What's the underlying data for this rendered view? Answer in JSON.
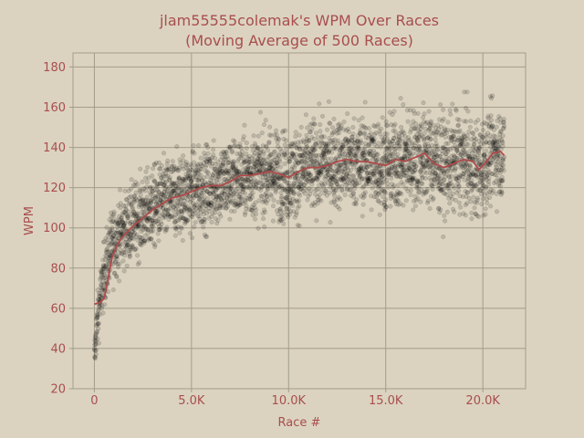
{
  "chart_data": {
    "type": "scatter",
    "title": "jlam55555colemak's WPM Over Races",
    "subtitle": "(Moving Average of 500 Races)",
    "xlabel": "Race #",
    "ylabel": "WPM",
    "xlim": [
      -1100,
      22200
    ],
    "ylim": [
      20,
      187
    ],
    "x_ticks": [
      0,
      5000,
      10000,
      15000,
      20000
    ],
    "x_tick_labels": [
      "0",
      "5.0K",
      "10.0K",
      "15.0K",
      "20.0K"
    ],
    "y_ticks": [
      20,
      40,
      60,
      80,
      100,
      120,
      140,
      160,
      180
    ],
    "y_tick_labels": [
      "20",
      "40",
      "60",
      "80",
      "100",
      "120",
      "140",
      "160",
      "180"
    ],
    "grid": true,
    "colors": {
      "background": "#dbd3c0",
      "text": "#a94e4e",
      "grid": "#a39c8a",
      "points": "#000000",
      "moving_average": "#b04a4a"
    },
    "series": [
      {
        "type": "scatter",
        "total_races": 21100,
        "band": [
          {
            "x": 0,
            "mean": 35,
            "spread": 5
          },
          {
            "x": 100,
            "mean": 48,
            "spread": 6
          },
          {
            "x": 250,
            "mean": 62,
            "spread": 7
          },
          {
            "x": 500,
            "mean": 77,
            "spread": 8
          },
          {
            "x": 800,
            "mean": 88,
            "spread": 9
          },
          {
            "x": 1200,
            "mean": 96,
            "spread": 9
          },
          {
            "x": 2000,
            "mean": 103,
            "spread": 9
          },
          {
            "x": 3000,
            "mean": 110,
            "spread": 10
          },
          {
            "x": 4000,
            "mean": 115,
            "spread": 10
          },
          {
            "x": 5000,
            "mean": 118,
            "spread": 10
          },
          {
            "x": 6000,
            "mean": 121,
            "spread": 10
          },
          {
            "x": 7000,
            "mean": 124,
            "spread": 10
          },
          {
            "x": 8000,
            "mean": 126,
            "spread": 10
          },
          {
            "x": 9000,
            "mean": 128,
            "spread": 11
          },
          {
            "x": 10000,
            "mean": 125,
            "spread": 11
          },
          {
            "x": 11000,
            "mean": 130,
            "spread": 11
          },
          {
            "x": 12000,
            "mean": 132,
            "spread": 11
          },
          {
            "x": 13000,
            "mean": 133,
            "spread": 11
          },
          {
            "x": 14000,
            "mean": 133,
            "spread": 11
          },
          {
            "x": 15000,
            "mean": 131,
            "spread": 12
          },
          {
            "x": 16000,
            "mean": 134,
            "spread": 12
          },
          {
            "x": 17000,
            "mean": 136,
            "spread": 12
          },
          {
            "x": 18000,
            "mean": 131,
            "spread": 12
          },
          {
            "x": 19000,
            "mean": 134,
            "spread": 12
          },
          {
            "x": 19700,
            "mean": 128,
            "spread": 12
          },
          {
            "x": 20500,
            "mean": 137,
            "spread": 11
          },
          {
            "x": 21100,
            "mean": 137,
            "spread": 11
          }
        ]
      },
      {
        "type": "line",
        "points": [
          [
            0,
            62
          ],
          [
            300,
            63
          ],
          [
            500,
            65
          ],
          [
            700,
            74
          ],
          [
            900,
            85
          ],
          [
            1200,
            92
          ],
          [
            1500,
            96
          ],
          [
            2000,
            101
          ],
          [
            2500,
            105
          ],
          [
            3000,
            109
          ],
          [
            3500,
            112
          ],
          [
            4000,
            115
          ],
          [
            4500,
            116
          ],
          [
            5000,
            118
          ],
          [
            5500,
            120
          ],
          [
            6000,
            121
          ],
          [
            6500,
            121
          ],
          [
            7000,
            123
          ],
          [
            7500,
            126
          ],
          [
            8000,
            126
          ],
          [
            8500,
            127
          ],
          [
            9000,
            128
          ],
          [
            9500,
            127
          ],
          [
            10000,
            125
          ],
          [
            10500,
            128
          ],
          [
            11000,
            130
          ],
          [
            11500,
            130
          ],
          [
            12000,
            131
          ],
          [
            12500,
            133
          ],
          [
            13000,
            134
          ],
          [
            13500,
            133
          ],
          [
            14000,
            133
          ],
          [
            14500,
            132
          ],
          [
            15000,
            131
          ],
          [
            15500,
            134
          ],
          [
            16000,
            133
          ],
          [
            16500,
            135
          ],
          [
            17000,
            137
          ],
          [
            17500,
            132
          ],
          [
            18000,
            130
          ],
          [
            18500,
            132
          ],
          [
            19000,
            134
          ],
          [
            19500,
            133
          ],
          [
            19800,
            129
          ],
          [
            20200,
            133
          ],
          [
            20500,
            137
          ],
          [
            20900,
            138
          ],
          [
            21100,
            136
          ]
        ]
      }
    ]
  }
}
